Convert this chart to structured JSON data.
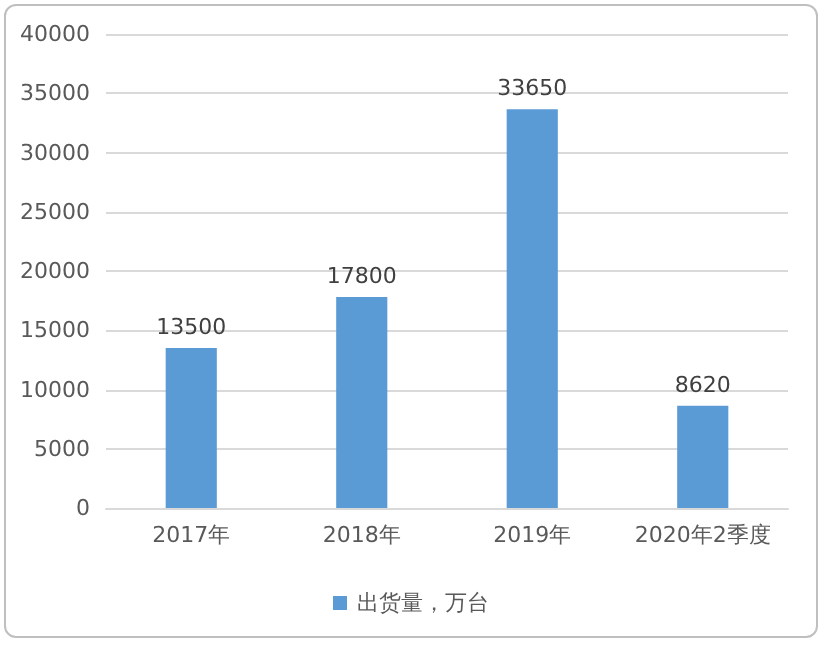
{
  "chart_data": {
    "type": "bar",
    "categories": [
      "2017年",
      "2018年",
      "2019年",
      "2020年2季度"
    ],
    "series": [
      {
        "name": "出货量，万台",
        "color": "#5b9bd5",
        "values": [
          13500,
          17800,
          33650,
          8620
        ]
      }
    ],
    "ylim": [
      0,
      40000
    ],
    "yticks": [
      0,
      5000,
      10000,
      15000,
      20000,
      25000,
      30000,
      35000,
      40000
    ],
    "grid": "y",
    "legend": "bottom",
    "data_labels": true
  }
}
